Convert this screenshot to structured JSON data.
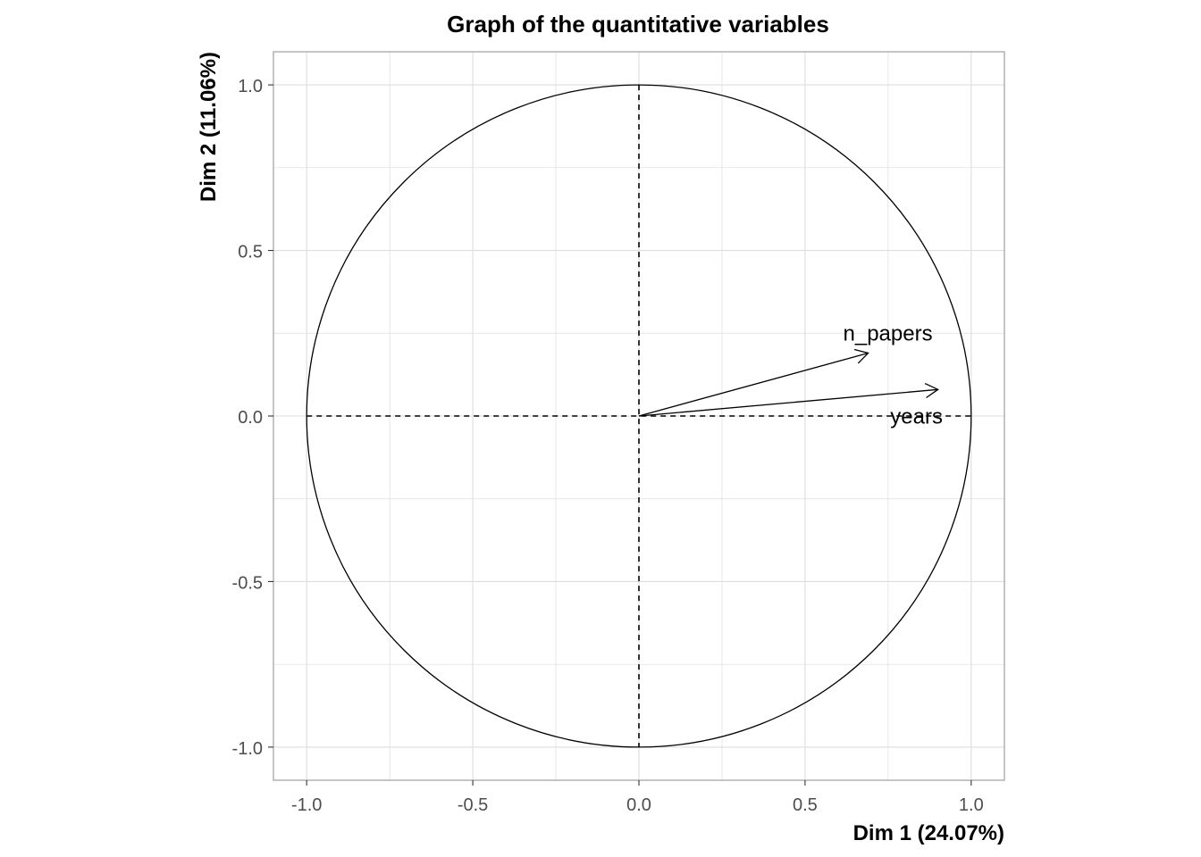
{
  "chart_data": {
    "type": "scatter",
    "subtype": "correlation-circle",
    "title": "Graph of the quantitative variables",
    "xlabel": "Dim 1 (24.07%)",
    "ylabel": "Dim 2 (11.06%)",
    "xlim": [
      -1.1,
      1.1
    ],
    "ylim": [
      -1.1,
      1.1
    ],
    "x_ticks": [
      -1.0,
      -0.5,
      0.0,
      0.5,
      1.0
    ],
    "x_tick_labels": [
      "-1.0",
      "-0.5",
      "0.0",
      "0.5",
      "1.0"
    ],
    "y_ticks": [
      -1.0,
      -0.5,
      0.0,
      0.5,
      1.0
    ],
    "y_tick_labels": [
      "-1.0",
      "-0.5",
      "0.0",
      "0.5",
      "1.0"
    ],
    "grid": true,
    "unit_circle": true,
    "variables": [
      {
        "name": "n_papers",
        "x": 0.69,
        "y": 0.19
      },
      {
        "name": "years",
        "x": 0.9,
        "y": 0.08
      }
    ],
    "colors": {
      "grid": "#dddddd",
      "panel_border": "#a6a6a6",
      "ink": "#000000",
      "tick_text": "#4d4d4d"
    }
  }
}
